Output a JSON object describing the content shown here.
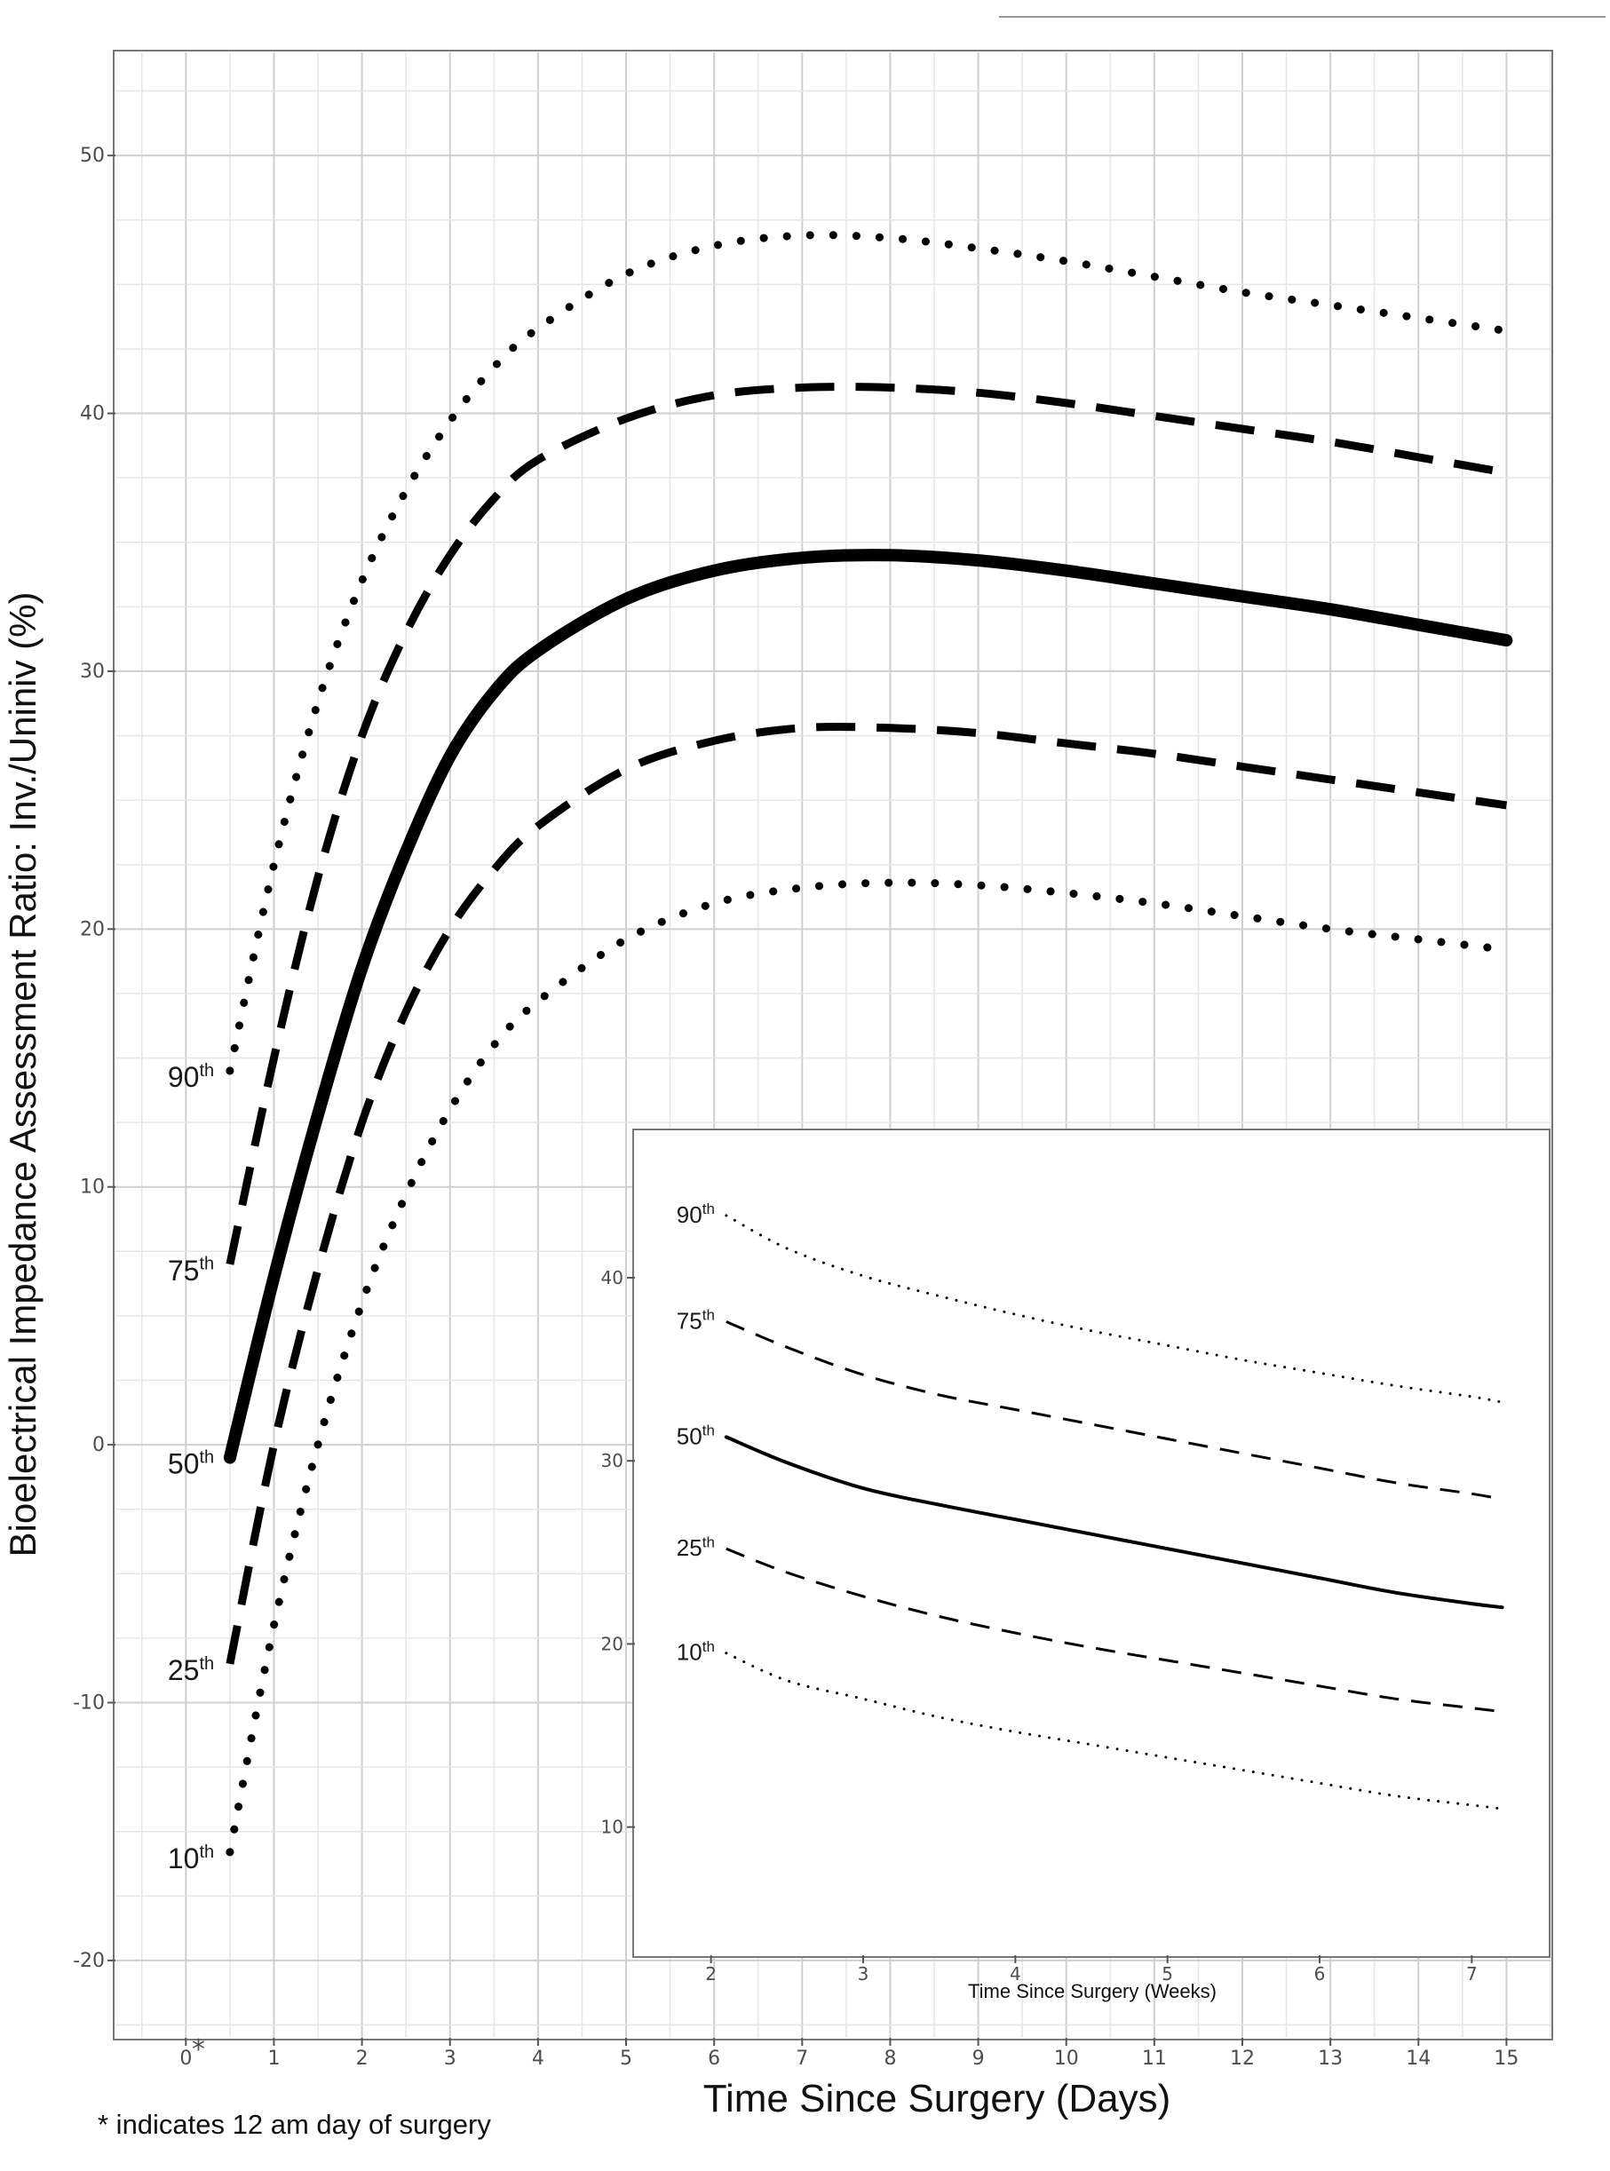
{
  "chart_data": [
    {
      "type": "line",
      "xlabel": "Time Since Surgery (Days)",
      "ylabel": "Bioelectrical Impedance Assessment Ratio: Inv./Uniniv (%)",
      "xlim": [
        -0.8,
        15.5
      ],
      "ylim": [
        -23,
        54
      ],
      "xticks": [
        0,
        1,
        2,
        3,
        4,
        5,
        6,
        7,
        8,
        9,
        10,
        11,
        12,
        13,
        14,
        15
      ],
      "yticks": [
        -20,
        -10,
        0,
        10,
        20,
        30,
        40,
        50
      ],
      "xtick_labels": [
        "0",
        "1",
        "2",
        "3",
        "4",
        "5",
        "6",
        "7",
        "8",
        "9",
        "10",
        "11",
        "12",
        "13",
        "14",
        "15"
      ],
      "ytick_labels": [
        "-20",
        "-10",
        "0",
        "10",
        "20",
        "30",
        "40",
        "50"
      ],
      "zero_marker": "*",
      "grid": true,
      "x": [
        0.5,
        1,
        1.5,
        2,
        2.5,
        3,
        3.5,
        4,
        5,
        6,
        7,
        8,
        9,
        10,
        11,
        12,
        13,
        14,
        15
      ],
      "series": [
        {
          "name": "90",
          "suffix": "th",
          "style": "dotted",
          "values": [
            14.5,
            22.5,
            28.8,
            33.5,
            37.0,
            39.7,
            41.8,
            43.3,
            45.4,
            46.5,
            46.9,
            46.8,
            46.4,
            45.9,
            45.3,
            44.7,
            44.2,
            43.7,
            43.2
          ]
        },
        {
          "name": "75",
          "suffix": "th",
          "style": "dashed",
          "values": [
            7.0,
            15.0,
            22.0,
            27.5,
            31.5,
            34.5,
            36.7,
            38.2,
            39.8,
            40.7,
            41.0,
            41.0,
            40.8,
            40.4,
            39.9,
            39.4,
            38.9,
            38.3,
            37.7
          ]
        },
        {
          "name": "50",
          "suffix": "th",
          "style": "solid",
          "values": [
            -0.5,
            6.5,
            12.8,
            18.5,
            23.0,
            26.7,
            29.2,
            30.8,
            32.8,
            33.9,
            34.4,
            34.5,
            34.3,
            33.9,
            33.4,
            32.9,
            32.4,
            31.8,
            31.2
          ]
        },
        {
          "name": "25",
          "suffix": "th",
          "style": "dashed",
          "values": [
            -8.5,
            0.0,
            6.8,
            12.5,
            16.8,
            20.0,
            22.3,
            24.0,
            26.2,
            27.3,
            27.8,
            27.8,
            27.6,
            27.2,
            26.8,
            26.3,
            25.8,
            25.3,
            24.8
          ]
        },
        {
          "name": "10",
          "suffix": "th",
          "style": "dotted",
          "values": [
            -15.8,
            -7.0,
            0.0,
            5.5,
            9.7,
            13.0,
            15.5,
            17.2,
            19.6,
            21.0,
            21.6,
            21.8,
            21.7,
            21.4,
            21.0,
            20.5,
            20.0,
            19.6,
            19.2
          ]
        }
      ],
      "footnote": "* indicates 12 am day of surgery"
    },
    {
      "type": "line",
      "xlabel": "Time Since Surgery (Weeks)",
      "ylabel": "",
      "xlim": [
        1.5,
        7.5
      ],
      "ylim": [
        3,
        48
      ],
      "xticks": [
        2,
        3,
        4,
        5,
        6,
        7
      ],
      "yticks": [
        10,
        20,
        30,
        40
      ],
      "xtick_labels": [
        "2",
        "3",
        "4",
        "5",
        "6",
        "7"
      ],
      "ytick_labels": [
        "10",
        "20",
        "30",
        "40"
      ],
      "grid": false,
      "x": [
        2.1,
        2.5,
        3,
        3.5,
        4,
        4.5,
        5,
        5.5,
        6,
        6.5,
        7,
        7.2
      ],
      "series": [
        {
          "name": "90",
          "suffix": "th",
          "style": "dotted",
          "values": [
            43.4,
            41.6,
            40.1,
            39.0,
            38.0,
            37.1,
            36.3,
            35.5,
            34.8,
            34.1,
            33.5,
            33.2
          ]
        },
        {
          "name": "75",
          "suffix": "th",
          "style": "dashed",
          "values": [
            37.6,
            36.2,
            34.7,
            33.6,
            32.8,
            32.0,
            31.2,
            30.4,
            29.6,
            28.8,
            28.2,
            27.9
          ]
        },
        {
          "name": "50",
          "suffix": "th",
          "style": "solid",
          "values": [
            31.3,
            29.9,
            28.5,
            27.6,
            26.8,
            26.0,
            25.2,
            24.4,
            23.6,
            22.8,
            22.2,
            22.0
          ]
        },
        {
          "name": "25",
          "suffix": "th",
          "style": "dashed",
          "values": [
            25.2,
            23.9,
            22.6,
            21.5,
            20.6,
            19.8,
            19.1,
            18.4,
            17.7,
            17.0,
            16.5,
            16.3
          ]
        },
        {
          "name": "10",
          "suffix": "th",
          "style": "dotted",
          "values": [
            19.5,
            18.0,
            17.0,
            16.0,
            15.2,
            14.5,
            13.8,
            13.1,
            12.4,
            11.7,
            11.2,
            11.0
          ]
        }
      ]
    }
  ]
}
